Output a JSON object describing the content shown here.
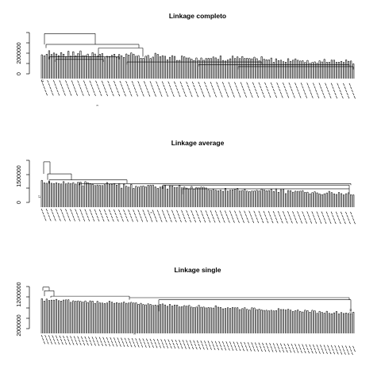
{
  "chart_data": [
    {
      "type": "dendrogram",
      "title": "Linkage completo",
      "y_ticks": [
        {
          "value": 0,
          "label": "0"
        },
        {
          "value": 2000000,
          "label": "2000000"
        }
      ],
      "ylim": [
        0,
        4000000
      ],
      "root_height": 3900000,
      "leaf_count": 260,
      "leaf_label_row_count": 5,
      "visible_leaf_labels": [
        "17",
        "3"
      ],
      "main_branch_heights": [
        3900000,
        2850000,
        2500000,
        1650000,
        1400000,
        1150000,
        900000,
        700000
      ]
    },
    {
      "type": "dendrogram",
      "title": "Linkage average",
      "y_ticks": [
        {
          "value": 0,
          "label": "0"
        },
        {
          "value": 1500000,
          "label": "1500000"
        }
      ],
      "ylim": [
        0,
        2800000
      ],
      "root_height": 2700000,
      "leaf_count": 260,
      "leaf_label_row_count": 4,
      "visible_leaf_labels": [
        "17",
        "3"
      ],
      "main_branch_heights": [
        2700000,
        1900000,
        1500000,
        1250000,
        1150000,
        900000
      ]
    },
    {
      "type": "dendrogram",
      "title": "Linkage single",
      "y_ticks": [
        {
          "value": 2000000,
          "label": "2000000"
        },
        {
          "value": 12000000,
          "label": "12000000"
        }
      ],
      "ylim": [
        0,
        14000000
      ],
      "root_height": 13800000,
      "leaf_count": 260,
      "leaf_label_row_count": 3,
      "visible_leaf_labels": [
        "249",
        "3"
      ],
      "main_branch_heights": [
        13800000,
        12600000,
        10800000,
        10300000,
        9600000
      ]
    }
  ]
}
